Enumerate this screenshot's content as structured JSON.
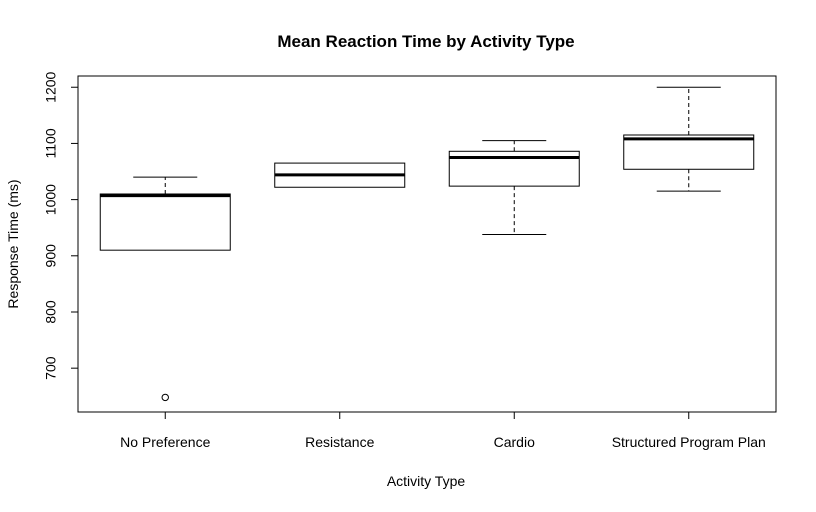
{
  "chart_data": {
    "type": "boxplot",
    "title": "Mean Reaction Time by Activity Type",
    "xlabel": "Activity Type",
    "ylabel": "Response Time (ms)",
    "ylim": [
      622,
      1220
    ],
    "yticks": [
      700,
      800,
      900,
      1000,
      1100,
      1200
    ],
    "categories": [
      "No Preference",
      "Resistance",
      "Cardio",
      "Structured Program Plan"
    ],
    "boxes": [
      {
        "category": "No Preference",
        "whisker_low": 910,
        "q1": 910,
        "median": 1007,
        "q3": 1010,
        "whisker_high": 1040,
        "outliers": [
          648
        ]
      },
      {
        "category": "Resistance",
        "whisker_low": 1022,
        "q1": 1022,
        "median": 1044,
        "q3": 1065,
        "whisker_high": 1065,
        "outliers": []
      },
      {
        "category": "Cardio",
        "whisker_low": 938,
        "q1": 1024,
        "median": 1075,
        "q3": 1086,
        "whisker_high": 1105,
        "outliers": []
      },
      {
        "category": "Structured Program Plan",
        "whisker_low": 1015,
        "q1": 1054,
        "median": 1108,
        "q3": 1115,
        "whisker_high": 1200,
        "outliers": []
      }
    ],
    "grid": false,
    "legend": "none"
  }
}
